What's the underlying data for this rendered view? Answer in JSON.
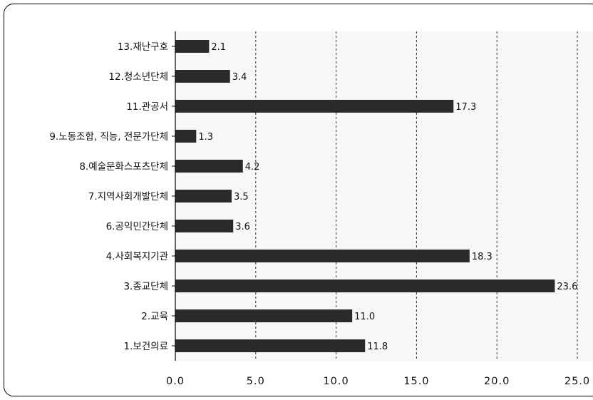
{
  "chart_data": {
    "type": "bar",
    "orientation": "horizontal",
    "categories": [
      "13.재난구호",
      "12.청소년단체",
      "11.관공서",
      "9.노동조합, 직능, 전문가단체",
      "8.예술문화스포츠단체",
      "7.지역사회개발단체",
      "6.공익민간단체",
      "4.사회복지기관",
      "3.종교단체",
      "2.교육",
      "1.보건의료"
    ],
    "values": [
      2.1,
      3.4,
      17.3,
      1.3,
      4.2,
      3.5,
      3.6,
      18.3,
      23.6,
      11.0,
      11.8
    ],
    "value_labels": [
      "2.1",
      "3.4",
      "17.3",
      "1.3",
      "4.2",
      "3.5",
      "3.6",
      "18.3",
      "23.6",
      "11.0",
      "11.8"
    ],
    "x_ticks": [
      "0.0",
      "5.0",
      "10.0",
      "15.0",
      "20.0",
      "25.0"
    ],
    "xlim": [
      0,
      25
    ],
    "title": "",
    "xlabel": "",
    "ylabel": "",
    "grid": "vertical dashed",
    "legend": "none",
    "colors": {
      "bar": "#2a2a2a",
      "plot_bg": "#f7f7f7",
      "grid": "#333333"
    }
  }
}
